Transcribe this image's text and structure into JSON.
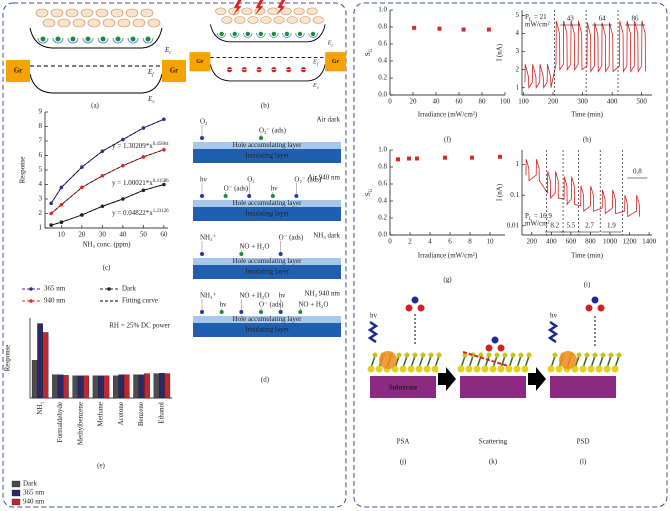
{
  "chart_data": [
    {
      "type": "line",
      "panel": "(c)",
      "ylabel": "Response",
      "xlabel": "NH₃ conc. (ppm)",
      "markers": true,
      "x": [
        5,
        10,
        20,
        30,
        40,
        50,
        60
      ],
      "series": [
        {
          "name": "365 nm",
          "color": "#2b2f8f",
          "values": [
            2.7,
            3.8,
            5.2,
            6.3,
            7.1,
            7.9,
            8.5
          ]
        },
        {
          "name": "Dark",
          "color": "#222222",
          "values": [
            1.2,
            1.4,
            1.9,
            2.5,
            3.0,
            3.6,
            4.0
          ]
        },
        {
          "name": "940 nm",
          "color": "#d62a2a",
          "values": [
            2.0,
            2.6,
            3.8,
            4.6,
            5.3,
            5.9,
            6.4
          ]
        }
      ],
      "fit_label": "Fitting curve",
      "equations": [
        {
          "base": "y = 1.30209*x",
          "exp": "0.45864"
        },
        {
          "base": "y = 1.00021*x",
          "exp": "0.41586"
        },
        {
          "base": "y = 0.04822*x",
          "exp": "1.23126"
        }
      ],
      "xlim": [
        2,
        62
      ],
      "ylim": [
        1,
        9
      ],
      "xticks": [
        10,
        20,
        30,
        40,
        50,
        60
      ],
      "yticks": [
        1,
        2,
        3,
        4,
        5,
        6,
        7,
        8,
        9
      ]
    },
    {
      "type": "bar",
      "panel": "(e)",
      "ylabel": "Response",
      "note": "RH = 25% DC power",
      "categories": [
        "NH₃",
        "Formaldehyde",
        "Methylbenzene",
        "Methane",
        "Acetone",
        "Benzene",
        "Ethanol"
      ],
      "series": [
        {
          "name": "Dark",
          "color": "#4d4d4d",
          "values": [
            1.7,
            1.05,
            1.0,
            1.0,
            1.0,
            1.05,
            1.1
          ]
        },
        {
          "name": "365 nm",
          "color": "#2a2a6a",
          "values": [
            3.35,
            1.05,
            1.0,
            1.0,
            1.05,
            1.05,
            1.12
          ]
        },
        {
          "name": "940 nm",
          "color": "#c1272d",
          "values": [
            2.95,
            1.02,
            1.0,
            1.0,
            1.05,
            1.1,
            1.1
          ]
        }
      ],
      "ylim": [
        0,
        3.6
      ]
    },
    {
      "type": "scatter",
      "panel": "(f)",
      "ylabel": {
        "base": "S",
        "sub": "G"
      },
      "xlabel": "Irradiance (mW/cm²)",
      "x": [
        21,
        43,
        64,
        86
      ],
      "values": [
        0.79,
        0.78,
        0.77,
        0.77
      ],
      "color": "#d62a2a",
      "xlim": [
        0,
        100
      ],
      "ylim": [
        0,
        1
      ],
      "xticks": [
        0,
        20,
        40,
        60,
        80,
        100
      ],
      "yticks": [
        {
          "value": 0,
          "label": "0.0"
        },
        {
          "value": 0.2,
          "label": "0.2"
        },
        {
          "value": 0.4,
          "label": "0.4"
        },
        {
          "value": 0.6,
          "label": "0.6"
        },
        {
          "value": 0.8,
          "label": "0.8"
        },
        {
          "value": 1,
          "label": "1.0"
        }
      ]
    },
    {
      "type": "scatter",
      "panel": "(g)",
      "ylabel": {
        "base": "S",
        "sub": "G"
      },
      "xlabel": "Irradiance (mW/cm²)",
      "x": [
        0.8,
        1.9,
        2.7,
        5.5,
        8.2,
        11
      ],
      "values": [
        0.89,
        0.9,
        0.9,
        0.91,
        0.91,
        0.92
      ],
      "color": "#d62a2a",
      "xlim": [
        0,
        11.5
      ],
      "ylim": [
        0,
        1
      ],
      "xticks": [
        0,
        2,
        4,
        6,
        8,
        10
      ],
      "yticks": [
        {
          "value": 0,
          "label": "0.0"
        },
        {
          "value": 0.2,
          "label": "0.2"
        },
        {
          "value": 0.4,
          "label": "0.4"
        },
        {
          "value": 0.6,
          "label": "0.6"
        },
        {
          "value": 0.8,
          "label": "0.8"
        },
        {
          "value": 1,
          "label": "1.0"
        }
      ]
    },
    {
      "type": "line",
      "panel": "(h)",
      "ylabel": "I (nA)",
      "xlabel": "Time (min)",
      "color": "#d42020",
      "x": [
        105,
        106,
        117,
        118,
        130,
        131,
        142,
        143,
        155,
        156,
        167,
        168,
        180,
        181,
        192,
        193,
        210,
        211,
        222,
        223,
        235,
        236,
        247,
        248,
        260,
        261,
        272,
        273,
        285,
        286,
        297,
        298,
        315,
        316,
        327,
        328,
        340,
        341,
        352,
        353,
        365,
        366,
        377,
        378,
        390,
        391,
        402,
        403,
        425,
        426,
        437,
        438,
        450,
        451,
        462,
        463,
        475,
        476,
        487,
        488,
        500,
        501,
        512,
        513
      ],
      "values": [
        1.3,
        2.3,
        1.6,
        1.0,
        1.3,
        2.3,
        1.6,
        1.0,
        1.3,
        2.3,
        1.6,
        1.0,
        1.3,
        2.3,
        1.6,
        1.0,
        2.3,
        4.7,
        4.0,
        2.0,
        2.3,
        4.7,
        4.0,
        2.0,
        2.3,
        4.7,
        4.0,
        2.0,
        2.3,
        4.7,
        4.0,
        2.0,
        2.2,
        4.6,
        3.9,
        1.9,
        2.2,
        4.6,
        3.9,
        1.9,
        2.2,
        4.6,
        3.9,
        1.9,
        2.2,
        4.6,
        3.9,
        1.9,
        2.2,
        4.7,
        4.0,
        1.9,
        2.2,
        4.7,
        4.0,
        1.9,
        2.2,
        4.7,
        4.0,
        1.9,
        2.2,
        4.7,
        4.0,
        1.9
      ],
      "dividers": [
        205,
        312,
        420
      ],
      "pl": {
        "base": "P",
        "sub": "L"
      },
      "annotations": [
        "= 21",
        "43",
        "64",
        "86"
      ],
      "unit": "mW/cm²",
      "xlim": [
        95,
        535
      ],
      "ylim": [
        0.6,
        5.3
      ],
      "xticks": [
        100,
        200,
        300,
        400,
        500
      ],
      "yticks": [
        1,
        2,
        3,
        4,
        5
      ]
    },
    {
      "type": "line",
      "panel": "(i)",
      "ylabel": "I (nA)",
      "xlabel": "Time (min)",
      "color": "#d42020",
      "log_y": true,
      "x": [
        140,
        143,
        170,
        172,
        245,
        248,
        275,
        277,
        360,
        363,
        390,
        392,
        440,
        443,
        470,
        472,
        530,
        533,
        560,
        562,
        605,
        608,
        635,
        637,
        700,
        703,
        730,
        732,
        800,
        803,
        830,
        832,
        920,
        923,
        950,
        952,
        1025,
        1028,
        1055,
        1057,
        1150,
        1153,
        1180,
        1182,
        1270,
        1273,
        1300,
        1302
      ],
      "values": [
        0.45,
        1.5,
        0.75,
        0.3,
        0.45,
        1.5,
        0.75,
        0.3,
        0.12,
        0.6,
        0.3,
        0.08,
        0.12,
        0.6,
        0.3,
        0.08,
        0.075,
        0.4,
        0.2,
        0.05,
        0.075,
        0.4,
        0.2,
        0.05,
        0.045,
        0.2,
        0.1,
        0.03,
        0.045,
        0.2,
        0.1,
        0.03,
        0.038,
        0.15,
        0.075,
        0.025,
        0.038,
        0.15,
        0.075,
        0.025,
        0.03,
        0.1,
        0.05,
        0.02,
        0.03,
        0.1,
        0.05,
        0.02
      ],
      "dividers": [
        350,
        520,
        680,
        900,
        1130
      ],
      "pl": {
        "base": "P",
        "sub": "L"
      },
      "annotations": [
        "= 16.9",
        "8.2",
        "5.5",
        "2.7",
        "1.9",
        "0.8"
      ],
      "unit": "mW/cm²",
      "xlim": [
        100,
        1430
      ],
      "ylim": [
        0.005,
        3
      ],
      "xticks": [
        200,
        400,
        600,
        800,
        1000,
        1200,
        1400
      ],
      "yticks": [
        0.01,
        0.1,
        1
      ]
    }
  ],
  "diagrams": {
    "a": {
      "ec": {
        "base": "E",
        "sub": "c"
      },
      "ef": {
        "base": "E",
        "sub": "f"
      },
      "ev": {
        "base": "E",
        "sub": "v"
      },
      "gr_left": "Gr",
      "gr_right": "Gr",
      "panel": "(a)"
    },
    "b": {
      "ec": {
        "base": "E",
        "sub": "c"
      },
      "ef": {
        "base": "E",
        "sub": "f"
      },
      "ev": {
        "base": "E",
        "sub": "v"
      },
      "gr_left": "Gr",
      "gr_right": "Gr",
      "panel": "(b)"
    },
    "d": {
      "steps": [
        {
          "title": "Air dark",
          "labels": [
            "O₂",
            "O₂⁻ (ads)"
          ]
        },
        {
          "title": "Air 940 nm",
          "labels": [
            "hν",
            "O⁻ (ads)",
            "O₂",
            "hν",
            "O₂⁻ (ads)"
          ]
        },
        {
          "title": "NH₃ dark",
          "labels": [
            "NH₃⁺",
            "NO + H₂O",
            "O⁻ (ads)"
          ]
        },
        {
          "title": "NH₃ 940 nm",
          "labels": [
            "NH₃⁺",
            "hν",
            "NO + H₂O",
            "O⁻ (ads)",
            "hν",
            "NO + H₂O"
          ]
        }
      ],
      "hole_layer": "Hole accumulating layer",
      "insulating_layer": "Insulating layer",
      "panel": "(d)"
    },
    "jkl": {
      "hv": "hv",
      "substrate": "Substrate",
      "panels": [
        {
          "name": "PSA",
          "panel": "(j)"
        },
        {
          "name": "Scattering",
          "panel": "(k)"
        },
        {
          "name": "PSD",
          "panel": "(l)"
        }
      ]
    }
  }
}
